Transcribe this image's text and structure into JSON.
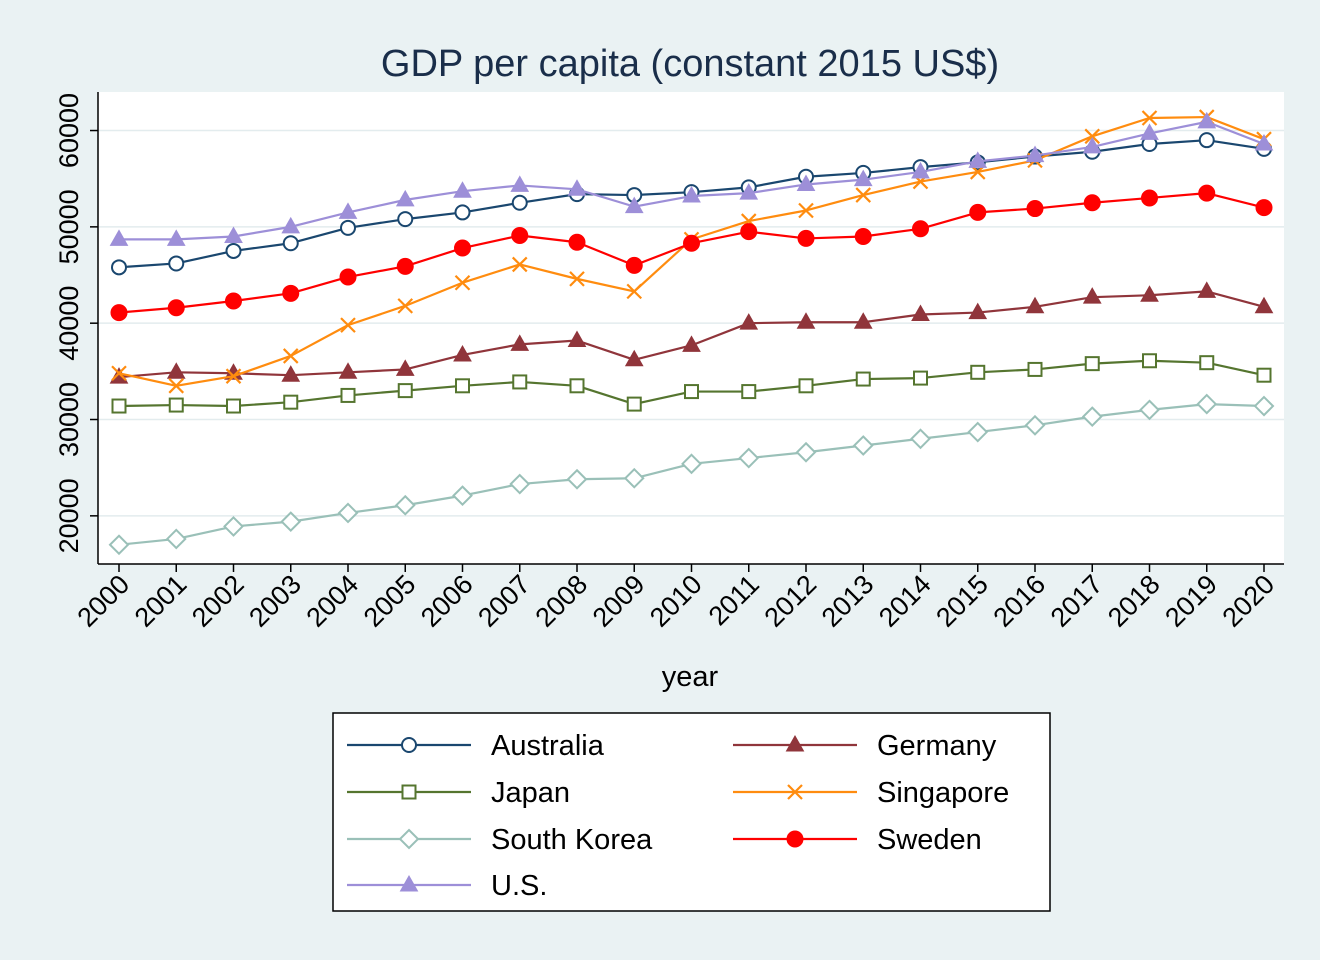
{
  "chart_data": {
    "type": "line",
    "title": "GDP per capita (constant 2015 US$)",
    "xlabel": "year",
    "ylabel": "",
    "x": [
      2000,
      2001,
      2002,
      2003,
      2004,
      2005,
      2006,
      2007,
      2008,
      2009,
      2010,
      2011,
      2012,
      2013,
      2014,
      2015,
      2016,
      2017,
      2018,
      2019,
      2020
    ],
    "ylim": [
      15000,
      64000
    ],
    "yticks": [
      20000,
      30000,
      40000,
      50000,
      60000
    ],
    "grid": true,
    "legend_position": "bottom",
    "series": [
      {
        "name": "Australia",
        "color": "#1a476f",
        "marker": "circle-open",
        "values": [
          45800,
          46200,
          47500,
          48300,
          49900,
          50800,
          51500,
          52500,
          53400,
          53300,
          53600,
          54100,
          55200,
          55600,
          56200,
          56700,
          57300,
          57800,
          58600,
          59000,
          58100
        ]
      },
      {
        "name": "Germany",
        "color": "#90353b",
        "marker": "triangle-filled",
        "values": [
          34400,
          34900,
          34800,
          34600,
          34900,
          35200,
          36700,
          37800,
          38200,
          36200,
          37700,
          40000,
          40100,
          40100,
          40900,
          41100,
          41700,
          42700,
          42900,
          43300,
          41700
        ]
      },
      {
        "name": "Japan",
        "color": "#55752f",
        "marker": "square-open",
        "values": [
          31400,
          31500,
          31400,
          31800,
          32500,
          33000,
          33500,
          33900,
          33500,
          31600,
          32900,
          32900,
          33500,
          34200,
          34300,
          34900,
          35200,
          35800,
          36100,
          35900,
          34600
        ]
      },
      {
        "name": "Singapore",
        "color": "#ff8c0f",
        "marker": "x",
        "values": [
          34800,
          33500,
          34500,
          36600,
          39800,
          41800,
          44200,
          46100,
          44600,
          43300,
          48700,
          50600,
          51700,
          53300,
          54700,
          55700,
          56900,
          59400,
          61300,
          61400,
          59100
        ]
      },
      {
        "name": "South Korea",
        "color": "#9ac0b8",
        "marker": "diamond-open",
        "values": [
          17000,
          17600,
          18900,
          19400,
          20300,
          21100,
          22100,
          23300,
          23800,
          23900,
          25400,
          26000,
          26600,
          27300,
          28000,
          28700,
          29400,
          30300,
          31000,
          31600,
          31400
        ]
      },
      {
        "name": "Sweden",
        "color": "#ff0000",
        "marker": "circle-filled",
        "values": [
          41100,
          41600,
          42300,
          43100,
          44800,
          45900,
          47800,
          49100,
          48400,
          46000,
          48300,
          49500,
          48800,
          49000,
          49800,
          51500,
          51900,
          52500,
          53000,
          53500,
          52000
        ]
      },
      {
        "name": "U.S.",
        "color": "#9d8fd8",
        "marker": "triangle-filled",
        "values": [
          48700,
          48700,
          49000,
          50000,
          51500,
          52800,
          53700,
          54300,
          53900,
          52100,
          53200,
          53500,
          54400,
          54900,
          55700,
          56800,
          57400,
          58300,
          59700,
          60900,
          58600
        ]
      }
    ]
  }
}
